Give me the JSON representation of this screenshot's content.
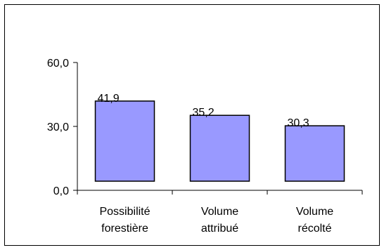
{
  "chart_data": {
    "type": "bar",
    "categories": [
      [
        "Possibilité",
        "forestière"
      ],
      [
        "Volume",
        "attribué"
      ],
      [
        "Volume",
        "récolté"
      ]
    ],
    "values": [
      41.9,
      35.2,
      30.3
    ],
    "data_labels": [
      "41,9",
      "35,2",
      "30,3"
    ],
    "yticks": [
      {
        "value": 0,
        "label": "0,0"
      },
      {
        "value": 30,
        "label": "30,0"
      },
      {
        "value": 60,
        "label": "60,0"
      }
    ],
    "ylim": [
      0,
      60
    ],
    "grid": false,
    "legend": "none",
    "colors": {
      "bar_fill": "#9999ff",
      "bar_stroke": "#000000",
      "axis": "#000000",
      "frame": "#000000"
    }
  }
}
